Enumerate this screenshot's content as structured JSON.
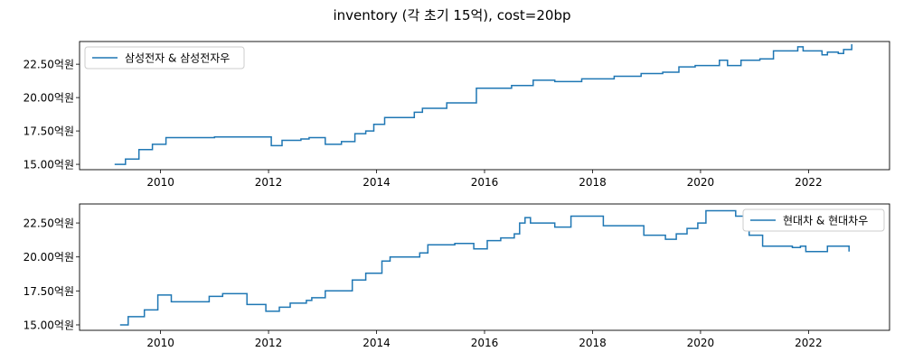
{
  "figure": {
    "title": "inventory (각 초기 15억), cost=20bp",
    "line_color": "#1f77b4"
  },
  "chart_data": [
    {
      "type": "line",
      "title": "",
      "xlabel": "",
      "ylabel": "",
      "legend": "top-left",
      "grid": false,
      "xlim": [
        2008.5,
        2023.5
      ],
      "ylim": [
        14.6,
        24.2
      ],
      "xticks": [
        2010,
        2012,
        2014,
        2016,
        2018,
        2020,
        2022
      ],
      "xtick_labels": [
        "2010",
        "2012",
        "2014",
        "2016",
        "2018",
        "2020",
        "2022"
      ],
      "yticks": [
        15,
        17.5,
        20,
        22.5
      ],
      "ytick_labels": [
        "15.00억원",
        "17.50억원",
        "20.00억원",
        "22.50억원"
      ],
      "series": [
        {
          "name": "삼성전자 & 삼성전자우",
          "style": "step",
          "x": [
            2009.15,
            2009.35,
            2009.6,
            2009.85,
            2010.1,
            2011.0,
            2012.05,
            2012.25,
            2012.6,
            2012.75,
            2013.05,
            2013.35,
            2013.6,
            2013.8,
            2013.95,
            2014.15,
            2014.7,
            2014.85,
            2015.3,
            2015.85,
            2016.5,
            2016.9,
            2017.3,
            2017.8,
            2018.4,
            2018.9,
            2019.3,
            2019.6,
            2019.9,
            2020.35,
            2020.5,
            2020.75,
            2021.1,
            2021.35,
            2021.8,
            2021.9,
            2022.25,
            2022.35,
            2022.55,
            2022.65,
            2022.8
          ],
          "y": [
            15.0,
            15.4,
            16.1,
            16.5,
            17.0,
            17.05,
            16.4,
            16.8,
            16.9,
            17.0,
            16.5,
            16.7,
            17.3,
            17.5,
            18.0,
            18.5,
            18.9,
            19.2,
            19.6,
            20.7,
            20.9,
            21.3,
            21.2,
            21.4,
            21.6,
            21.8,
            21.9,
            22.3,
            22.4,
            22.8,
            22.4,
            22.8,
            22.9,
            23.5,
            23.8,
            23.5,
            23.2,
            23.4,
            23.3,
            23.6,
            24.0
          ]
        }
      ]
    },
    {
      "type": "line",
      "title": "",
      "xlabel": "",
      "ylabel": "",
      "legend": "top-right",
      "grid": false,
      "xlim": [
        2008.5,
        2023.5
      ],
      "ylim": [
        14.6,
        23.9
      ],
      "xticks": [
        2010,
        2012,
        2014,
        2016,
        2018,
        2020,
        2022
      ],
      "xtick_labels": [
        "2010",
        "2012",
        "2014",
        "2016",
        "2018",
        "2020",
        "2022"
      ],
      "yticks": [
        15,
        17.5,
        20,
        22.5
      ],
      "ytick_labels": [
        "15.00억원",
        "17.50억원",
        "20.00억원",
        "22.50억원"
      ],
      "series": [
        {
          "name": "현대차 & 현대차우",
          "style": "step",
          "x": [
            2009.25,
            2009.4,
            2009.7,
            2009.95,
            2010.2,
            2010.9,
            2011.15,
            2011.6,
            2011.95,
            2012.2,
            2012.4,
            2012.7,
            2012.8,
            2013.05,
            2013.55,
            2013.8,
            2014.1,
            2014.25,
            2014.8,
            2014.95,
            2015.45,
            2015.8,
            2016.05,
            2016.3,
            2016.55,
            2016.65,
            2016.75,
            2016.85,
            2017.3,
            2017.6,
            2018.2,
            2018.95,
            2019.35,
            2019.55,
            2019.75,
            2019.95,
            2020.1,
            2020.65,
            2020.9,
            2021.15,
            2021.7,
            2021.85,
            2021.95,
            2022.35,
            2022.65,
            2022.75
          ],
          "y": [
            15.0,
            15.6,
            16.1,
            17.2,
            16.7,
            17.1,
            17.3,
            16.5,
            16.0,
            16.3,
            16.6,
            16.8,
            17.0,
            17.5,
            18.3,
            18.8,
            19.7,
            20.0,
            20.3,
            20.9,
            21.0,
            20.6,
            21.2,
            21.4,
            21.7,
            22.5,
            22.9,
            22.5,
            22.2,
            23.0,
            22.3,
            21.6,
            21.3,
            21.7,
            22.1,
            22.5,
            23.4,
            23.0,
            21.6,
            20.8,
            20.7,
            20.8,
            20.4,
            20.8,
            20.8,
            20.4
          ]
        }
      ]
    }
  ]
}
